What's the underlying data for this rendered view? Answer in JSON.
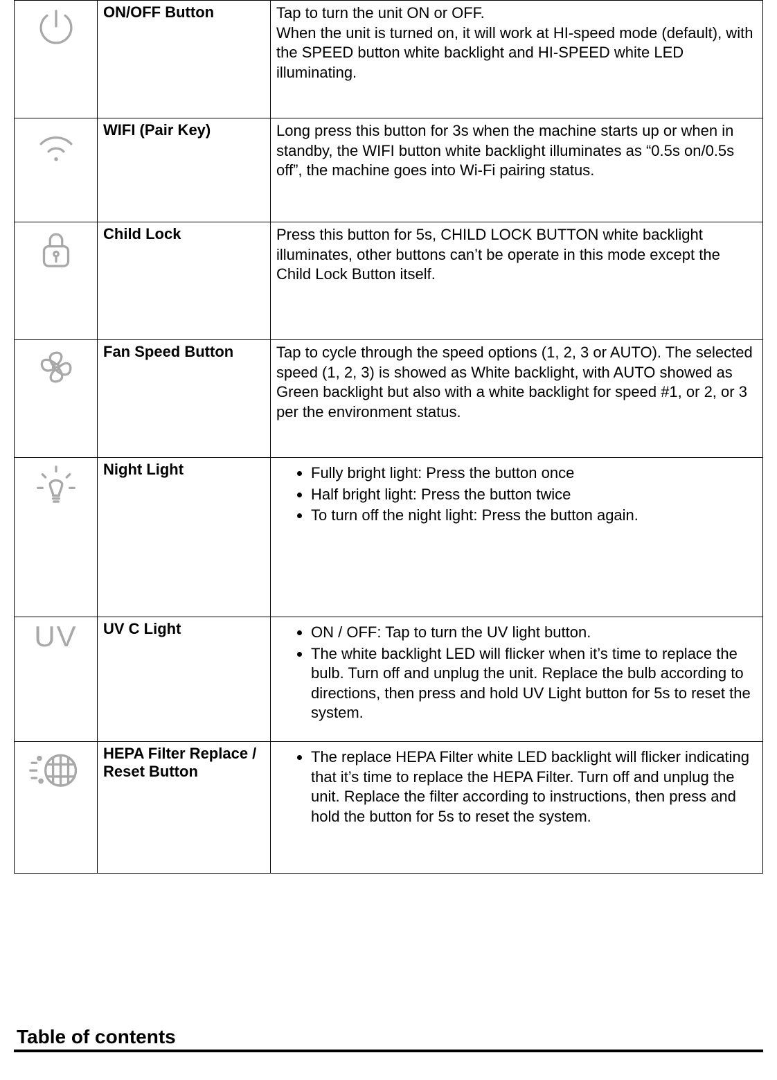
{
  "rows": [
    {
      "icon": "power",
      "name": "ON/OFF Button",
      "type": "text",
      "text": "Tap to turn the unit ON or OFF.\nWhen the unit is turned on, it will work at HI-speed mode (default), with the SPEED button white backlight and HI-SPEED white LED illuminating."
    },
    {
      "icon": "wifi",
      "name": "WIFI (Pair Key)",
      "type": "text",
      "text": "Long press this button for 3s when the machine starts up or when in standby, the WIFI button white backlight illuminates as “0.5s on/0.5s off”, the machine goes into Wi-Fi pairing status."
    },
    {
      "icon": "lock",
      "name": "Child Lock",
      "type": "text",
      "text": "Press this button for 5s, CHILD LOCK BUTTON white backlight illuminates, other buttons can’t be operate in this mode except the Child Lock Button itself."
    },
    {
      "icon": "fan",
      "name": "Fan Speed Button",
      "type": "text",
      "text": "Tap to cycle through the speed options (1, 2, 3 or AUTO). The selected speed (1, 2, 3) is showed as White backlight, with AUTO showed as Green backlight but also with a white backlight for speed #1, or 2, or 3 per the environment status."
    },
    {
      "icon": "bulb",
      "name": "Night Light",
      "type": "list",
      "items": [
        "Fully bright light: Press the button once",
        "Half bright light: Press the button twice",
        "To turn off the night light: Press the button again."
      ]
    },
    {
      "icon": "uv",
      "name": "UV C Light",
      "type": "list",
      "items": [
        "ON / OFF: Tap to turn the UV light button.",
        "The white backlight LED will flicker when it’s time to replace the bulb. Turn off and unplug the unit. Replace the bulb according to directions, then press and hold UV Light button for 5s to reset the system."
      ]
    },
    {
      "icon": "filter",
      "name": "HEPA Filter Replace / Reset Button",
      "type": "list",
      "items": [
        "The replace HEPA Filter white LED backlight will flicker indicating that it’s time to replace the HEPA Filter. Turn off and unplug the unit. Replace the filter according to instructions, then press and hold the button for 5s to reset the system."
      ]
    }
  ],
  "toc_heading": "Table of contents",
  "colors": {
    "icon_stroke": "#a8a8a8",
    "border": "#000000",
    "text": "#000000",
    "background": "#ffffff"
  }
}
